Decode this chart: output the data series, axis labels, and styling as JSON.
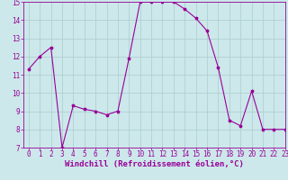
{
  "x": [
    0,
    1,
    2,
    3,
    4,
    5,
    6,
    7,
    8,
    9,
    10,
    11,
    12,
    13,
    14,
    15,
    16,
    17,
    18,
    19,
    20,
    21,
    22,
    23
  ],
  "y": [
    11.3,
    12.0,
    12.5,
    7.0,
    9.3,
    9.1,
    9.0,
    8.8,
    9.0,
    11.9,
    15.0,
    15.0,
    15.0,
    15.0,
    14.6,
    14.1,
    13.4,
    11.4,
    8.5,
    8.2,
    10.1,
    8.0,
    8.0,
    8.0
  ],
  "line_color": "#990099",
  "marker": "*",
  "bg_color": "#cce8ea",
  "grid_color": "#aacccc",
  "xlabel": "Windchill (Refroidissement éolien,°C)",
  "xlabel_color": "#990099",
  "tick_color": "#990099",
  "ylim": [
    7,
    15
  ],
  "xlim": [
    -0.5,
    23
  ],
  "yticks": [
    7,
    8,
    9,
    10,
    11,
    12,
    13,
    14,
    15
  ],
  "xticks": [
    0,
    1,
    2,
    3,
    4,
    5,
    6,
    7,
    8,
    9,
    10,
    11,
    12,
    13,
    14,
    15,
    16,
    17,
    18,
    19,
    20,
    21,
    22,
    23
  ],
  "axis_color": "#990099",
  "font_size_label": 6.5,
  "font_size_tick": 5.5
}
